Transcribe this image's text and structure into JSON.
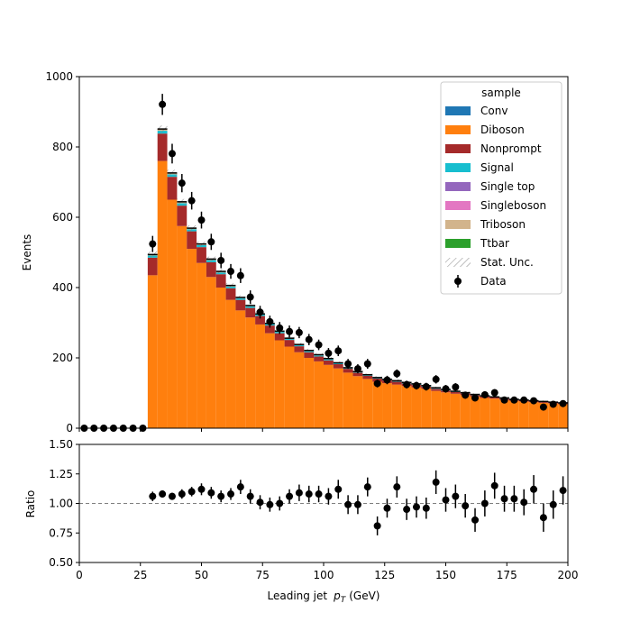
{
  "chart_data": {
    "type": "bar",
    "stacked": true,
    "xlabel_main": "Leading jet",
    "xlabel_var": "p",
    "xlabel_sub": "T",
    "xlabel_unit": "(GeV)",
    "ylabel": "Events",
    "ratio_ylabel": "Ratio",
    "xlim": [
      0,
      200
    ],
    "ylim": [
      0,
      1000
    ],
    "ratio_ylim": [
      0.5,
      1.5
    ],
    "x_ticks": [
      "0",
      "25",
      "50",
      "75",
      "100",
      "125",
      "150",
      "175",
      "200"
    ],
    "y_ticks": [
      "0",
      "200",
      "400",
      "600",
      "800",
      "1000"
    ],
    "ratio_ticks": [
      "0.50",
      "0.75",
      "1.00",
      "1.25",
      "1.50"
    ],
    "legend_title": "sample",
    "legend_position": "top-right",
    "legend": [
      {
        "label": "Conv",
        "color": "#1f77b4",
        "kind": "patch"
      },
      {
        "label": "Diboson",
        "color": "#ff7f0e",
        "kind": "patch"
      },
      {
        "label": "Nonprompt",
        "color": "#a52a2a",
        "kind": "patch"
      },
      {
        "label": "Signal",
        "color": "#17becf",
        "kind": "patch"
      },
      {
        "label": "Single top",
        "color": "#9467bd",
        "kind": "patch"
      },
      {
        "label": "Singleboson",
        "color": "#e377c2",
        "kind": "patch"
      },
      {
        "label": "Triboson",
        "color": "#d2b48c",
        "kind": "patch"
      },
      {
        "label": "Ttbar",
        "color": "#2ca02c",
        "kind": "patch"
      },
      {
        "label": "Stat. Unc.",
        "color": "#888888",
        "kind": "hatch"
      },
      {
        "label": "Data",
        "color": "#000000",
        "kind": "marker"
      }
    ],
    "bin_edges": [
      0,
      4,
      8,
      12,
      16,
      20,
      24,
      28,
      32,
      36,
      40,
      44,
      48,
      52,
      56,
      60,
      64,
      68,
      72,
      76,
      80,
      84,
      88,
      92,
      96,
      100,
      104,
      108,
      112,
      116,
      120,
      124,
      128,
      132,
      136,
      140,
      144,
      148,
      152,
      156,
      160,
      164,
      168,
      172,
      176,
      180,
      184,
      188,
      192,
      196,
      200
    ],
    "bin_centers": [
      2,
      6,
      10,
      14,
      18,
      22,
      26,
      30,
      34,
      38,
      42,
      46,
      50,
      54,
      58,
      62,
      66,
      70,
      74,
      78,
      82,
      86,
      90,
      94,
      98,
      102,
      106,
      110,
      114,
      118,
      122,
      126,
      130,
      134,
      138,
      142,
      146,
      150,
      154,
      158,
      162,
      166,
      170,
      174,
      178,
      182,
      186,
      190,
      194,
      198
    ],
    "series": [
      {
        "name": "Diboson",
        "values": [
          0,
          0,
          0,
          0,
          0,
          0,
          0,
          435,
          760,
          650,
          575,
          510,
          470,
          430,
          400,
          365,
          335,
          315,
          295,
          270,
          250,
          232,
          216,
          200,
          190,
          180,
          170,
          158,
          148,
          140,
          132,
          128,
          124,
          120,
          116,
          112,
          106,
          102,
          98,
          94,
          90,
          86,
          84,
          80,
          78,
          76,
          74,
          72,
          70,
          68
        ]
      },
      {
        "name": "Nonprompt",
        "values": [
          0,
          0,
          0,
          0,
          0,
          0,
          0,
          50,
          78,
          65,
          58,
          50,
          45,
          42,
          38,
          33,
          30,
          27,
          24,
          22,
          20,
          19,
          17,
          16,
          14,
          13,
          12,
          11,
          10,
          9,
          9,
          8,
          8,
          7,
          7,
          6,
          6,
          5,
          5,
          5,
          4,
          4,
          4,
          4,
          3,
          3,
          3,
          3,
          3,
          3
        ]
      },
      {
        "name": "Signal",
        "values": [
          0,
          0,
          0,
          0,
          0,
          0,
          0,
          6,
          8,
          7,
          7,
          6,
          6,
          6,
          5,
          5,
          5,
          5,
          4,
          4,
          4,
          3,
          3,
          3,
          3,
          3,
          3,
          2,
          2,
          2,
          2,
          2,
          2,
          2,
          2,
          2,
          2,
          2,
          1,
          1,
          1,
          1,
          1,
          1,
          1,
          1,
          1,
          1,
          1,
          1
        ]
      },
      {
        "name": "Triboson",
        "values": [
          0,
          0,
          0,
          0,
          0,
          0,
          0,
          3,
          5,
          4,
          4,
          3,
          3,
          3,
          3,
          3,
          2,
          2,
          2,
          2,
          2,
          2,
          2,
          2,
          2,
          2,
          1,
          1,
          1,
          1,
          1,
          1,
          1,
          1,
          1,
          1,
          1,
          1,
          1,
          1,
          1,
          1,
          1,
          1,
          1,
          1,
          1,
          1,
          1,
          1
        ]
      }
    ],
    "totals": [
      0,
      0,
      0,
      0,
      0,
      0,
      0,
      494,
      851,
      726,
      644,
      569,
      524,
      481,
      446,
      406,
      372,
      349,
      325,
      298,
      276,
      256,
      238,
      221,
      209,
      198,
      186,
      172,
      161,
      152,
      144,
      139,
      135,
      130,
      126,
      121,
      115,
      110,
      105,
      101,
      96,
      92,
      89,
      86,
      82,
      80,
      78,
      76,
      74,
      72
    ],
    "stat_unc": [
      0,
      0,
      0,
      0,
      0,
      0,
      0,
      9,
      10,
      9,
      8,
      8,
      7,
      7,
      7,
      6,
      6,
      6,
      6,
      5,
      5,
      5,
      5,
      5,
      5,
      4,
      4,
      4,
      4,
      4,
      4,
      4,
      4,
      4,
      4,
      4,
      3,
      3,
      3,
      3,
      3,
      3,
      3,
      3,
      3,
      3,
      3,
      3,
      3,
      3
    ],
    "data": [
      0,
      0,
      0,
      0,
      0,
      0,
      0,
      524,
      921,
      781,
      697,
      647,
      592,
      530,
      477,
      446,
      434,
      373,
      330,
      303,
      285,
      275,
      272,
      252,
      237,
      213,
      220,
      183,
      169,
      183,
      127,
      137,
      155,
      124,
      121,
      118,
      139,
      112,
      117,
      94,
      86,
      95,
      101,
      80,
      80,
      80,
      78,
      60,
      68,
      70
    ],
    "data_err": [
      0,
      0,
      0,
      0,
      0,
      0,
      0,
      23,
      30,
      28,
      26,
      25,
      24,
      23,
      22,
      21,
      21,
      19,
      18,
      17,
      17,
      17,
      16,
      16,
      15,
      15,
      15,
      14,
      13,
      14,
      11,
      12,
      12,
      11,
      11,
      11,
      12,
      11,
      11,
      10,
      9,
      10,
      10,
      9,
      9,
      9,
      9,
      8,
      8,
      8
    ],
    "ratio": [
      null,
      null,
      null,
      null,
      null,
      null,
      null,
      1.06,
      1.08,
      1.06,
      1.08,
      1.1,
      1.12,
      1.09,
      1.06,
      1.08,
      1.14,
      1.06,
      1.01,
      0.99,
      1.0,
      1.06,
      1.09,
      1.08,
      1.08,
      1.06,
      1.12,
      0.99,
      0.99,
      1.14,
      0.81,
      0.96,
      1.14,
      0.95,
      0.97,
      0.96,
      1.18,
      1.03,
      1.06,
      0.98,
      0.86,
      1.0,
      1.15,
      1.04,
      1.04,
      1.01,
      1.12,
      0.88,
      0.99,
      1.11
    ],
    "ratio_err": [
      null,
      null,
      null,
      null,
      null,
      null,
      null,
      0.04,
      0.03,
      0.03,
      0.04,
      0.04,
      0.05,
      0.05,
      0.05,
      0.05,
      0.06,
      0.06,
      0.06,
      0.06,
      0.06,
      0.06,
      0.07,
      0.07,
      0.07,
      0.07,
      0.08,
      0.08,
      0.08,
      0.08,
      0.08,
      0.08,
      0.09,
      0.09,
      0.09,
      0.09,
      0.1,
      0.1,
      0.1,
      0.1,
      0.1,
      0.11,
      0.11,
      0.11,
      0.11,
      0.11,
      0.12,
      0.12,
      0.12,
      0.12
    ]
  }
}
